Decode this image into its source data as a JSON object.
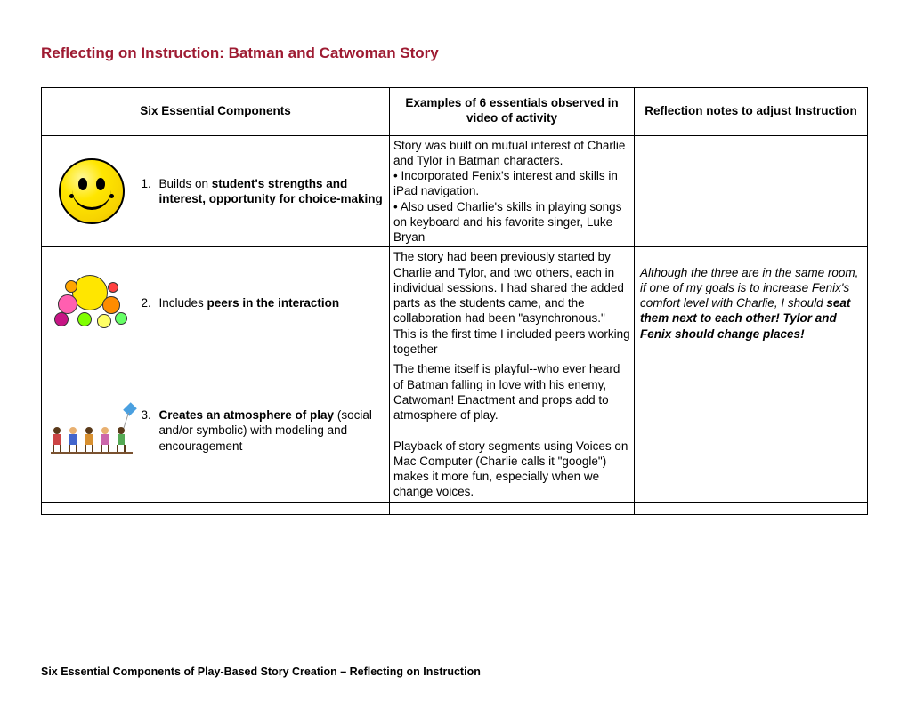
{
  "title": "Reflecting on Instruction: Batman and Catwoman Story",
  "table": {
    "headers": {
      "col1": "Six Essential Components",
      "col2": "Examples of 6 essentials observed in video of activity",
      "col3": "Reflection notes to adjust Instruction"
    },
    "rows": [
      {
        "num": "1.",
        "comp_pre": "Builds on ",
        "comp_bold": "student's strengths and interest, opportunity for choice-making",
        "comp_post": "",
        "example_html": "Story was built on mutual interest of Charlie and Tylor in Batman characters.<br>• Incorporated Fenix's interest and skills in iPad navigation.<br>• Also used Charlie's skills in playing songs on keyboard and his favorite singer, Luke Bryan",
        "reflection_html": ""
      },
      {
        "num": "2.",
        "comp_pre": "Includes ",
        "comp_bold": "peers in the interaction",
        "comp_post": "",
        "example_html": "The story had been previously started by Charlie and Tylor, and two others, each in individual sessions. I had shared the added parts as the students came, and the collaboration had been \"asynchronous.\" This is the first time I included peers working together",
        "reflection_html": "<i>Although the three are in the same room, if one of my goals is to increase Fenix's comfort level with Charlie, I should <b>seat them next to each other! Tylor and Fenix should change places!</b></i>"
      },
      {
        "num": "3.",
        "comp_pre": "",
        "comp_bold": "Creates an atmosphere of play",
        "comp_post": " (social and/or symbolic) with modeling and encouragement",
        "example_html": "The theme itself is playful--who ever heard of Batman falling in love with his enemy, Catwoman! Enactment and props add to atmosphere of play.<br><br>Playback of story segments using Voices on Mac Computer (Charlie calls it \"google\") makes it more fun, especially when we change voices.",
        "reflection_html": ""
      }
    ]
  },
  "footer": "Six Essential Components of Play-Based Story Creation – Reflecting on Instruction",
  "colors": {
    "title": "#9e1b32",
    "border": "#000000",
    "text": "#000000",
    "background": "#ffffff"
  },
  "icons": [
    "smiley-icon",
    "group-faces-icon",
    "kids-playing-icon"
  ]
}
